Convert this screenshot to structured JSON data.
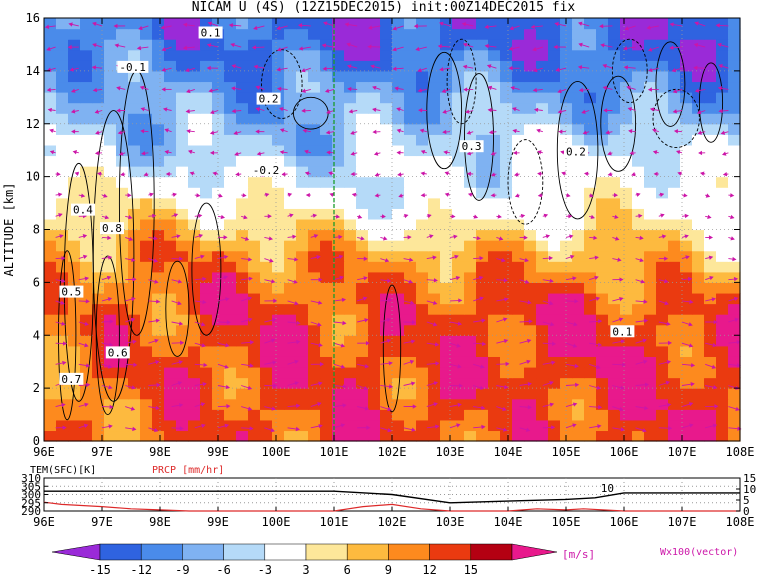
{
  "title": "NICAM U (4S) (12Z15DEC2015) init:00Z14DEC2015 fix",
  "colors": {
    "shade_levels": [
      "#9a2ad8",
      "#2f63e0",
      "#4a8bea",
      "#7fb2f2",
      "#b5daf8",
      "#ffffff",
      "#fde79a",
      "#fdba3f",
      "#fd8a1e",
      "#ea3a10",
      "#b40012",
      "#e8198c"
    ],
    "vector_color": "#cc16a8",
    "contour_color": "#000000",
    "guide_line": "#1a9b2a",
    "temp_line": "#000000",
    "prcp_line": "#dd2a2a"
  },
  "main_panel": {
    "xlabel": "",
    "ylabel": "ALTITUDE [km]",
    "x_ticks": [
      "96E",
      "97E",
      "98E",
      "99E",
      "100E",
      "101E",
      "102E",
      "103E",
      "104E",
      "105E",
      "106E",
      "107E",
      "108E"
    ],
    "y_ticks": [
      "0",
      "2",
      "4",
      "6",
      "8",
      "10",
      "12",
      "14",
      "16"
    ],
    "contour_labels": [
      "0.1",
      "-0.1",
      "0.2",
      "0.3",
      "0.4",
      "0.5",
      "0.6",
      "0.7",
      "0.8",
      "-0.2",
      "0.1",
      "0.2"
    ],
    "guide_longitude": "101E"
  },
  "bottom_panel": {
    "left_label": "TEM(SFC)[K]",
    "right_label": "PRCP [mm/hr]",
    "left_ticks": [
      "290",
      "295",
      "300",
      "305",
      "310"
    ],
    "right_ticks": [
      "0",
      "5",
      "10",
      "15"
    ],
    "annotation": "10"
  },
  "colorbar": {
    "ticks": [
      "-15",
      "-12",
      "-9",
      "-6",
      "-3",
      "3",
      "6",
      "9",
      "12",
      "15"
    ],
    "unit": "[m/s]",
    "vector_note": "Wx100(vector)"
  },
  "chart_data": {
    "type": "heatmap",
    "title": "NICAM U (4S) (12Z15DEC2015) init:00Z14DEC2015 fix",
    "xlim": [
      96,
      108
    ],
    "ylim": [
      0,
      16
    ],
    "ylabel": "ALTITUDE [km]",
    "z_levels": [
      -15,
      -12,
      -9,
      -6,
      -3,
      3,
      6,
      9,
      12,
      15
    ],
    "z_unit": "m/s",
    "u_wind_by_level": {
      "altitudes_km": [
        1,
        3,
        5,
        7,
        9,
        11,
        13,
        15
      ],
      "longitudes": [
        96,
        98,
        100,
        102,
        104,
        106,
        108
      ],
      "values": [
        [
          10,
          12,
          13,
          14,
          12,
          14,
          14
        ],
        [
          11,
          13,
          14,
          13,
          14,
          15,
          13
        ],
        [
          10,
          12,
          14,
          12,
          14,
          13,
          12
        ],
        [
          8,
          11,
          10,
          9,
          9,
          8,
          5
        ],
        [
          5,
          3,
          2,
          -2,
          -1,
          2,
          3
        ],
        [
          -3,
          -5,
          -6,
          -4,
          -3,
          -2,
          -5
        ],
        [
          -6,
          -8,
          -9,
          -7,
          -8,
          -9,
          -10
        ],
        [
          -10,
          -12,
          -13,
          -14,
          -12,
          -14,
          -13
        ]
      ]
    },
    "surface_temperature": {
      "x": [
        96,
        97,
        98,
        99,
        100,
        101,
        102,
        103,
        104,
        105,
        105.5,
        106,
        107,
        108
      ],
      "y": [
        302,
        302,
        302,
        302,
        302,
        302,
        300,
        295,
        296,
        297,
        298,
        301,
        301,
        301
      ],
      "unit": "K"
    },
    "precipitation": {
      "x": [
        96,
        96.3,
        97,
        97.5,
        98,
        98.5,
        99,
        100,
        101,
        101.5,
        102,
        102.5,
        103,
        103.5,
        104,
        104.5,
        105,
        105.3,
        106,
        108
      ],
      "y": [
        4,
        3,
        2,
        1,
        0.5,
        0,
        0,
        0,
        0,
        2,
        3,
        1,
        0,
        0,
        0,
        1,
        0.5,
        1,
        0,
        0
      ],
      "unit": "mm/hr"
    }
  }
}
